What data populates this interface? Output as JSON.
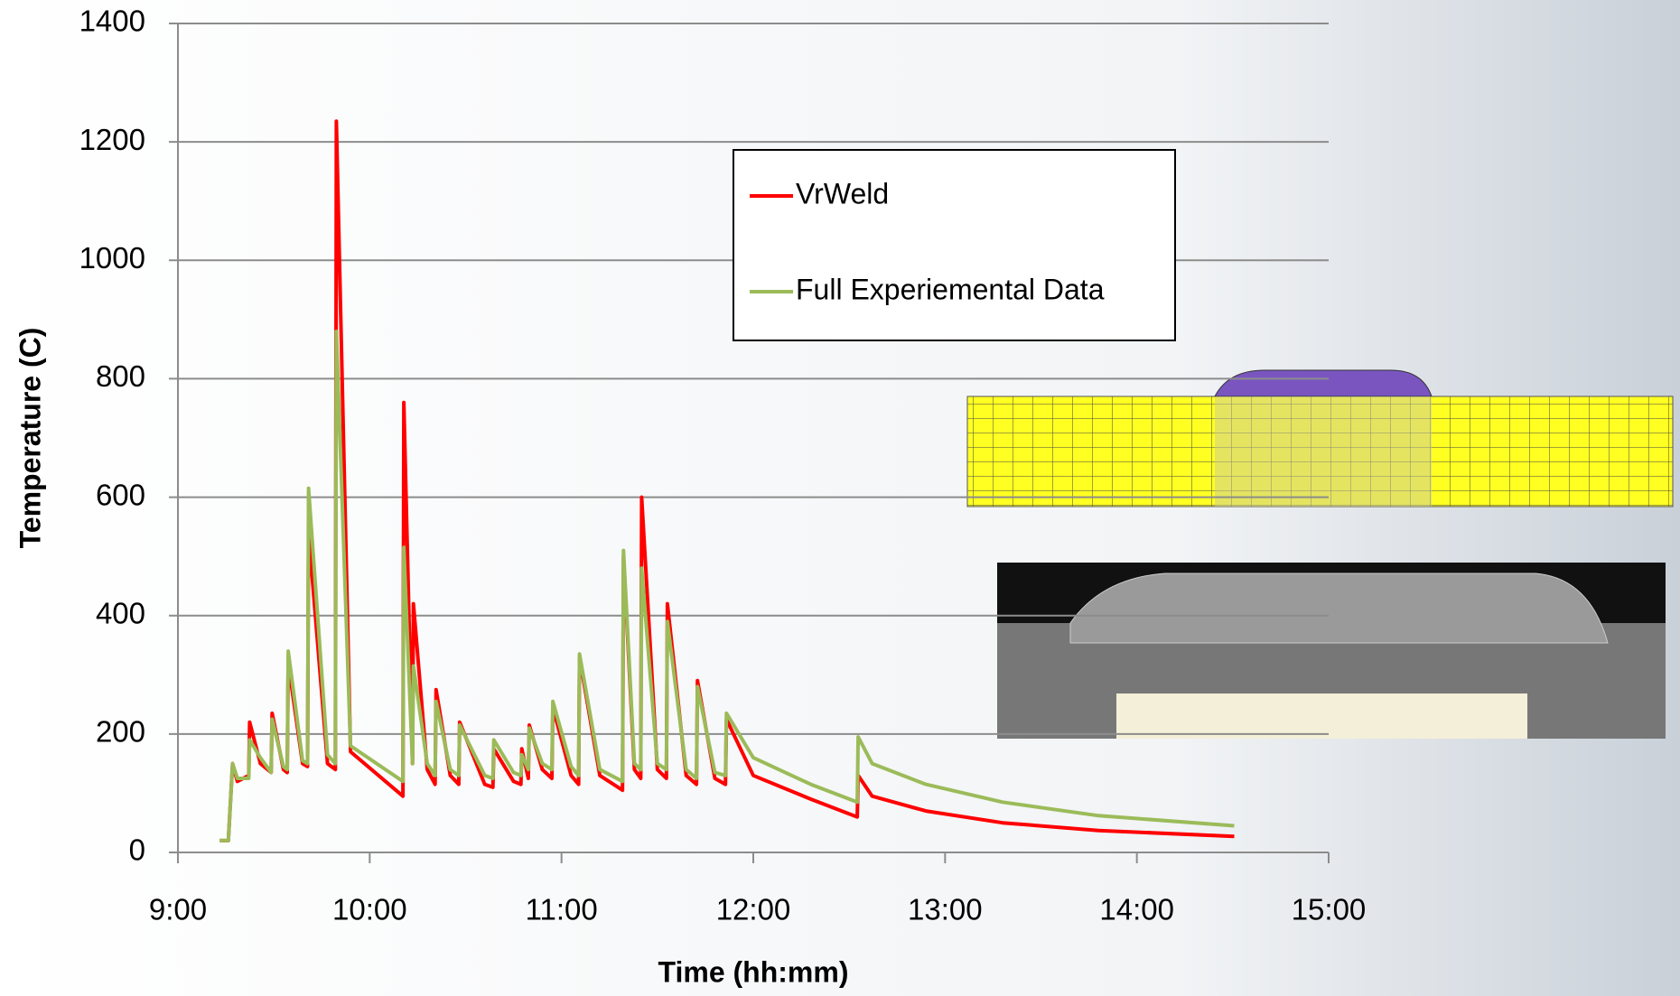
{
  "chart_data": {
    "type": "line",
    "x_label": "Time (hh:mm)",
    "y_label": "Temperature (C)",
    "x": [
      9.218,
      9.263,
      9.285,
      9.31,
      9.369,
      9.374,
      9.43,
      9.486,
      9.491,
      9.55,
      9.57,
      9.575,
      9.65,
      9.676,
      9.681,
      9.78,
      9.821,
      9.826,
      9.9,
      10.173,
      10.178,
      10.223,
      10.228,
      10.3,
      10.341,
      10.346,
      10.42,
      10.464,
      10.469,
      10.6,
      10.642,
      10.647,
      10.75,
      10.788,
      10.793,
      10.827,
      10.832,
      10.9,
      10.95,
      10.955,
      11.05,
      11.089,
      11.094,
      11.2,
      11.318,
      11.323,
      11.38,
      11.413,
      11.418,
      11.5,
      11.547,
      11.552,
      11.65,
      11.704,
      11.709,
      11.8,
      11.855,
      11.86,
      12.0,
      12.3,
      12.542,
      12.547,
      12.62,
      12.9,
      13.3,
      13.8,
      14.508
    ],
    "series": [
      {
        "name": "VrWeld",
        "color": "#ff0000",
        "values": [
          20,
          20,
          150,
          120,
          130,
          220,
          150,
          135,
          235,
          140,
          135,
          320,
          150,
          145,
          540,
          150,
          140,
          1235,
          170,
          95,
          760,
          150,
          420,
          140,
          115,
          275,
          130,
          115,
          220,
          115,
          110,
          175,
          120,
          115,
          175,
          125,
          215,
          140,
          125,
          245,
          130,
          115,
          330,
          130,
          105,
          500,
          140,
          125,
          600,
          140,
          125,
          420,
          130,
          115,
          290,
          125,
          115,
          225,
          130,
          90,
          60,
          130,
          95,
          70,
          50,
          37,
          27
        ]
      },
      {
        "name": "Full Experiemental Data",
        "color": "#9bbb59",
        "values": [
          20,
          20,
          150,
          125,
          125,
          190,
          160,
          135,
          225,
          145,
          140,
          340,
          155,
          150,
          615,
          165,
          150,
          880,
          180,
          120,
          515,
          150,
          315,
          150,
          130,
          255,
          140,
          130,
          215,
          130,
          125,
          190,
          135,
          130,
          165,
          140,
          210,
          150,
          140,
          255,
          145,
          130,
          335,
          140,
          120,
          510,
          150,
          140,
          480,
          150,
          140,
          390,
          140,
          125,
          280,
          135,
          130,
          235,
          160,
          115,
          85,
          195,
          150,
          115,
          85,
          62,
          45
        ]
      }
    ],
    "xlim": [
      9,
      15
    ],
    "xticks": [
      {
        "value": 9,
        "label": "9:00"
      },
      {
        "value": 10,
        "label": "10:00"
      },
      {
        "value": 11,
        "label": "11:00"
      },
      {
        "value": 12,
        "label": "12:00"
      },
      {
        "value": 13,
        "label": "13:00"
      },
      {
        "value": 14,
        "label": "14:00"
      },
      {
        "value": 15,
        "label": "15:00"
      }
    ],
    "ylim": [
      0,
      1400
    ],
    "yticks": [
      0,
      200,
      400,
      600,
      800,
      1000,
      1200,
      1400
    ],
    "grid": true
  }
}
